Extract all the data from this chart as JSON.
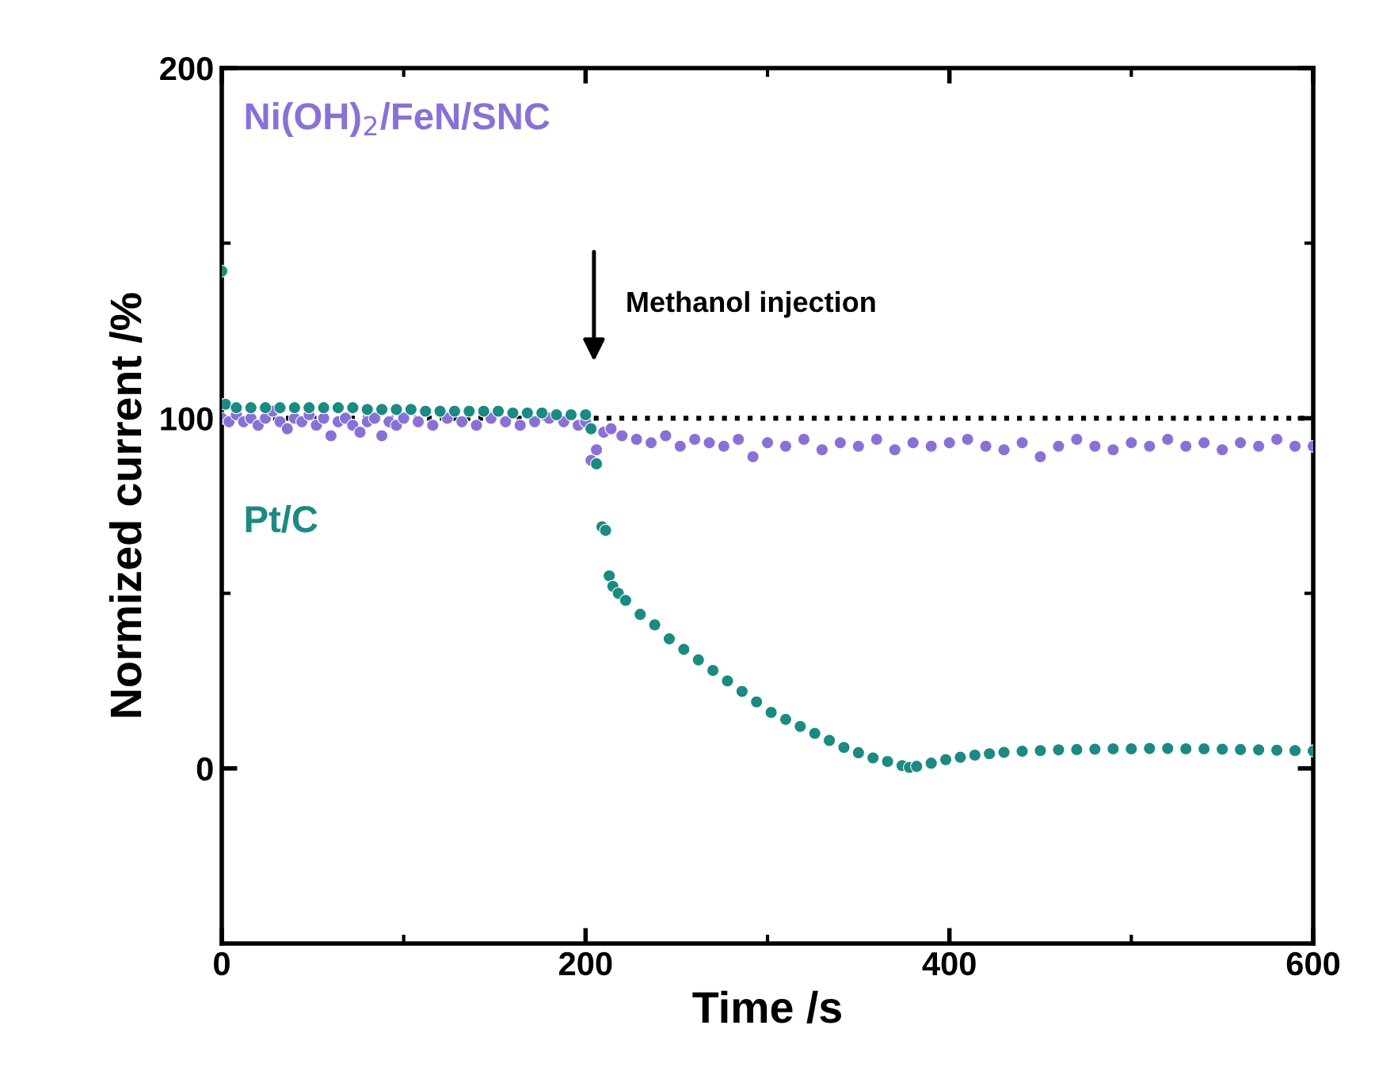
{
  "chart_data": {
    "type": "scatter",
    "xlabel": "Time /s",
    "ylabel": "Normized current /%",
    "xlim": [
      0,
      600
    ],
    "ylim": [
      -50,
      200
    ],
    "xticks": [
      0,
      200,
      400,
      600
    ],
    "yticks": [
      0,
      100,
      200
    ],
    "marker": "circle",
    "grid": false,
    "ref_lines": [
      {
        "axis": "y",
        "value": 100,
        "label": null,
        "color": "#000000",
        "line_style": "dotted"
      }
    ],
    "annotations": [
      "Methanol injection"
    ],
    "series": [
      {
        "name": "Ni(OH)$_{2}$/FeN/SNC",
        "color": "#8a70d6",
        "x": [
          0,
          4,
          8,
          12,
          16,
          20,
          24,
          28,
          32,
          36,
          40,
          44,
          48,
          52,
          56,
          60,
          64,
          68,
          72,
          76,
          80,
          84,
          88,
          92,
          96,
          100,
          108,
          116,
          124,
          132,
          140,
          148,
          156,
          164,
          172,
          180,
          188,
          196,
          200,
          203,
          206,
          210,
          214,
          220,
          228,
          236,
          244,
          252,
          260,
          268,
          276,
          284,
          292,
          300,
          310,
          320,
          330,
          340,
          350,
          360,
          370,
          380,
          390,
          400,
          410,
          420,
          430,
          440,
          450,
          460,
          470,
          480,
          490,
          500,
          510,
          520,
          530,
          540,
          550,
          560,
          570,
          580,
          590,
          600
        ],
        "values": [
          100,
          99,
          101,
          99,
          100,
          98,
          100,
          102,
          99,
          97,
          100,
          99,
          101,
          98,
          100,
          95,
          99,
          100,
          98,
          96,
          99,
          100,
          95,
          99,
          98,
          100,
          99,
          98,
          100,
          99,
          98,
          100,
          99,
          98,
          99,
          100,
          99,
          98,
          99,
          88,
          91,
          96,
          97,
          95,
          94,
          93,
          95,
          92,
          94,
          93,
          92,
          94,
          89,
          93,
          92,
          94,
          91,
          93,
          92,
          94,
          91,
          93,
          92,
          93,
          94,
          92,
          91,
          93,
          89,
          92,
          94,
          92,
          91,
          93,
          92,
          94,
          92,
          93,
          91,
          93,
          92,
          94,
          92,
          92
        ]
      },
      {
        "name": "Pt/C",
        "color": "#1a8a82",
        "x": [
          0,
          2,
          8,
          16,
          24,
          32,
          40,
          48,
          56,
          64,
          72,
          80,
          88,
          96,
          104,
          112,
          120,
          128,
          136,
          144,
          152,
          160,
          168,
          176,
          184,
          192,
          200,
          203,
          206,
          209,
          211,
          213,
          215,
          218,
          222,
          230,
          238,
          246,
          254,
          262,
          270,
          278,
          286,
          294,
          302,
          310,
          318,
          326,
          334,
          342,
          350,
          358,
          366,
          374,
          378,
          382,
          390,
          398,
          406,
          414,
          422,
          430,
          440,
          450,
          460,
          470,
          480,
          490,
          500,
          510,
          520,
          530,
          540,
          550,
          560,
          570,
          580,
          590,
          600
        ],
        "values": [
          142,
          104,
          103,
          103,
          103,
          103,
          103,
          103,
          103,
          103,
          103,
          102.5,
          102.5,
          102.5,
          102.5,
          102,
          102,
          102,
          102,
          102,
          102,
          101.5,
          101.5,
          101.5,
          101,
          101,
          101,
          97,
          87,
          69,
          68,
          55,
          52,
          50,
          48,
          44,
          41,
          37,
          34,
          31,
          28,
          25,
          22,
          19,
          16,
          14,
          12,
          10,
          8,
          6,
          4.5,
          3,
          2,
          0.8,
          0.3,
          0.6,
          1.5,
          2.5,
          3.2,
          3.8,
          4.2,
          4.6,
          4.9,
          5.1,
          5.3,
          5.4,
          5.5,
          5.6,
          5.6,
          5.7,
          5.7,
          5.6,
          5.6,
          5.5,
          5.4,
          5.3,
          5.2,
          5.1,
          5.0
        ]
      }
    ]
  }
}
